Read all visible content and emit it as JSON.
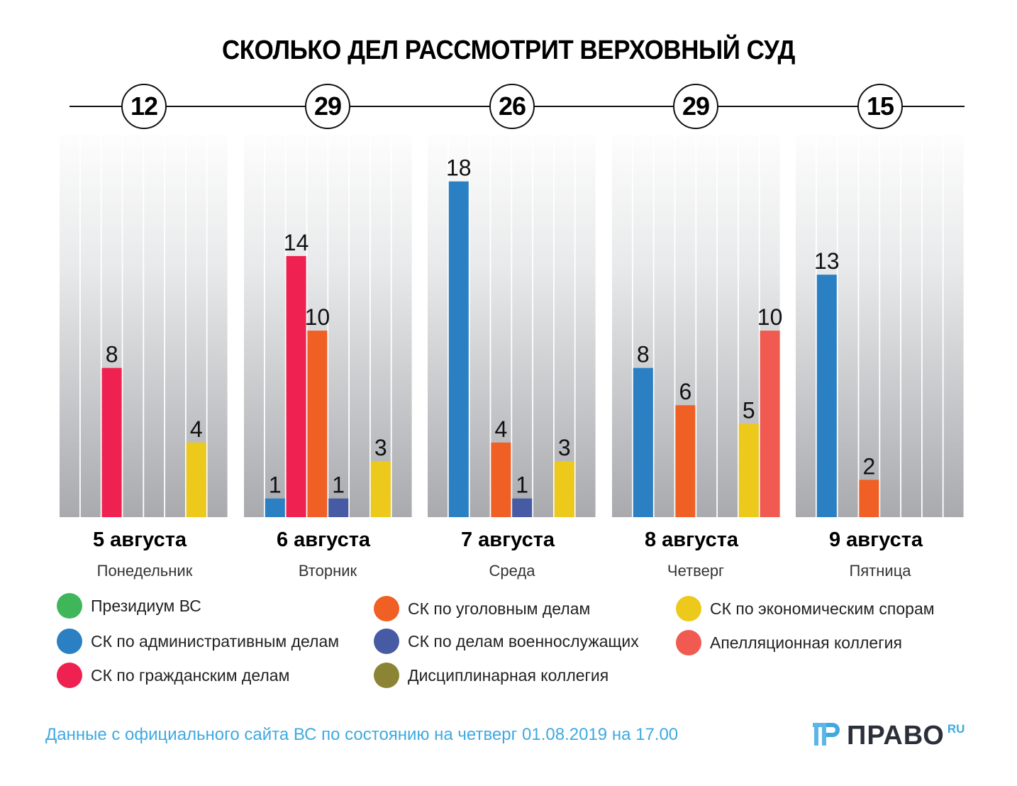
{
  "title": "СКОЛЬКО ДЕЛ РАССМОТРИТ ВЕРХОВНЫЙ СУД",
  "days": [
    {
      "date": "5 августа",
      "weekday": "Понедельник",
      "total": "12"
    },
    {
      "date": "6 августа",
      "weekday": "Вторник",
      "total": "29"
    },
    {
      "date": "7 августа",
      "weekday": "Среда",
      "total": "26"
    },
    {
      "date": "8 августа",
      "weekday": "Четверг",
      "total": "29"
    },
    {
      "date": "9 августа",
      "weekday": "Пятница",
      "total": "15"
    }
  ],
  "legend": [
    {
      "label": "Президиум ВС",
      "color": "#3fb65a"
    },
    {
      "label": "СК по административным делам",
      "color": "#2b80c4"
    },
    {
      "label": "СК по гражданским делам",
      "color": "#ee2150"
    },
    {
      "label": "СК по уголовным делам",
      "color": "#f05f24"
    },
    {
      "label": "СК по делам военнослужащих",
      "color": "#465ba4"
    },
    {
      "label": "Дисциплинарная коллегия",
      "color": "#8b8435"
    },
    {
      "label": "СК по экономическим спорам",
      "color": "#ecc91b"
    },
    {
      "label": "Апелляционная коллегия",
      "color": "#f05a50"
    }
  ],
  "source": "Данные с официального сайта ВС по состоянию на четверг 01.08.2019 на 17.00",
  "logo": {
    "text": "ПРАВО",
    "suffix": "RU",
    "icon": "pravo-logo-icon"
  },
  "chart_data": {
    "type": "bar",
    "title": "СКОЛЬКО ДЕЛ РАССМОТРИТ ВЕРХОВНЫЙ СУД",
    "xlabel": "",
    "ylabel": "",
    "categories": [
      "5 августа",
      "6 августа",
      "7 августа",
      "8 августа",
      "9 августа"
    ],
    "ylim": [
      0,
      20.5
    ],
    "grid": false,
    "legend_position": "bottom",
    "series": [
      {
        "name": "Президиум ВС",
        "values": [
          0,
          0,
          0,
          0,
          0
        ]
      },
      {
        "name": "СК по административным делам",
        "values": [
          0,
          1,
          18,
          8,
          13
        ]
      },
      {
        "name": "СК по гражданским делам",
        "values": [
          8,
          14,
          0,
          0,
          0
        ]
      },
      {
        "name": "СК по уголовным делам",
        "values": [
          0,
          10,
          4,
          6,
          2
        ]
      },
      {
        "name": "СК по делам военнослужащих",
        "values": [
          0,
          1,
          1,
          0,
          0
        ]
      },
      {
        "name": "Дисциплинарная коллегия",
        "values": [
          0,
          0,
          0,
          0,
          0
        ]
      },
      {
        "name": "СК по экономическим спорам",
        "values": [
          4,
          3,
          3,
          5,
          0
        ]
      },
      {
        "name": "Апелляционная коллегия",
        "values": [
          0,
          0,
          0,
          10,
          0
        ]
      }
    ],
    "totals": [
      12,
      29,
      26,
      29,
      15
    ]
  }
}
